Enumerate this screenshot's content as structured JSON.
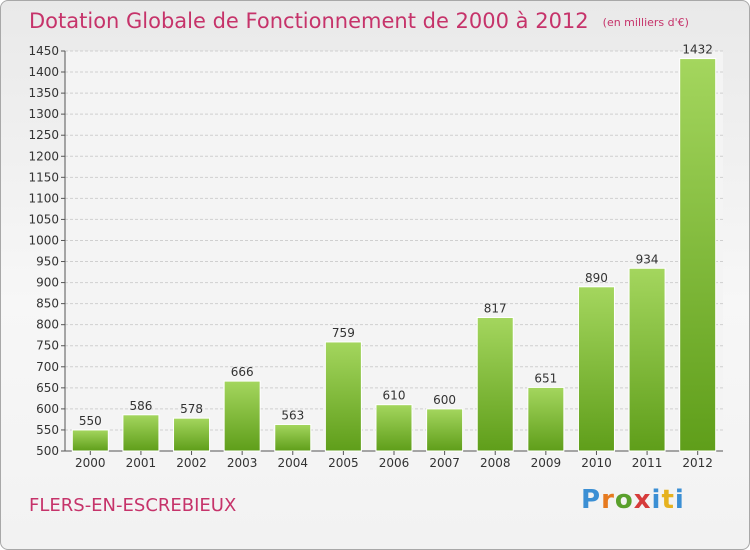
{
  "title": "Dotation Globale de Fonctionnement de 2000 à 2012",
  "unit_label": "(en milliers d'€)",
  "commune": "FLERS-EN-ESCREBIEUX",
  "logo": {
    "p1": "P",
    "p2": "r",
    "p3": "o",
    "p4": "x",
    "p5": "i",
    "p6": "t",
    "p7": "i"
  },
  "colors": {
    "title": "#c6336a",
    "bar_light": "#a4d65e",
    "bar_dark": "#5f9e1a"
  },
  "chart_data": {
    "type": "bar",
    "title": "Dotation Globale de Fonctionnement de 2000 à 2012",
    "ylabel": "(en milliers d'€)",
    "xlabel": "",
    "categories": [
      "2000",
      "2001",
      "2002",
      "2003",
      "2004",
      "2005",
      "2006",
      "2007",
      "2008",
      "2009",
      "2010",
      "2011",
      "2012"
    ],
    "values": [
      550,
      586,
      578,
      666,
      563,
      759,
      610,
      600,
      817,
      651,
      890,
      934,
      1432
    ],
    "ylim": [
      500,
      1450
    ],
    "ytick_step": 50,
    "grid": true
  }
}
